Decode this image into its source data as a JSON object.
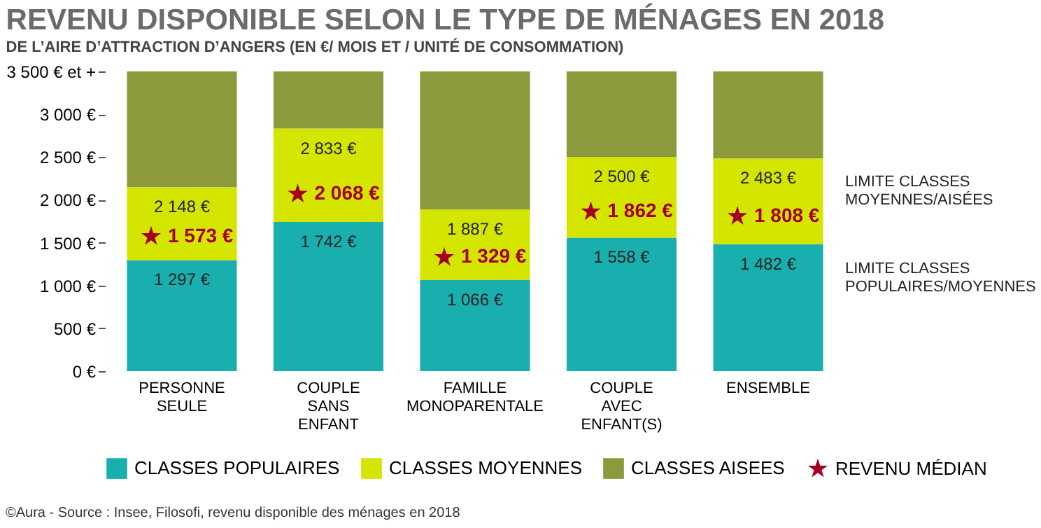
{
  "chart_data": {
    "type": "bar",
    "title": "REVENU DISPONIBLE SELON LE TYPE DE MÉNAGES EN 2018",
    "subtitle": "DE L’AIRE D’ATTRACTION D’ANGERS (EN €/ MOIS ET / UNITÉ DE CONSOMMATION)",
    "categories": [
      "PERSONNE SEULE",
      "COUPLE SANS ENFANT",
      "FAMILLE MONOPARENTALE",
      "COUPLE AVEC ENFANT(S)",
      "ENSEMBLE"
    ],
    "stacked": true,
    "grid": false,
    "legend": "bottom",
    "ylim": [
      0,
      3500
    ],
    "yticks": [
      {
        "value": 0,
        "label": "0 €"
      },
      {
        "value": 500,
        "label": "500 €"
      },
      {
        "value": 1000,
        "label": "1 000 €"
      },
      {
        "value": 1500,
        "label": "1 500 €"
      },
      {
        "value": 2000,
        "label": "2 000 €"
      },
      {
        "value": 2500,
        "label": "2 500 €"
      },
      {
        "value": 3000,
        "label": "3 000 €"
      },
      {
        "value": 3500,
        "label": "3 500 € et +"
      }
    ],
    "series": [
      {
        "name": "CLASSES POPULAIRES",
        "color": "#1aafaf",
        "values": [
          1297,
          1742,
          1066,
          1558,
          1482
        ],
        "value_labels": [
          "1 297 €",
          "1 742 €",
          "1 066 €",
          "1 558 €",
          "1 482 €"
        ]
      },
      {
        "name": "CLASSES MOYENNES",
        "color": "#d4e600",
        "values": [
          851,
          1091,
          821,
          942,
          1001
        ]
      },
      {
        "name": "CLASSES AISEES",
        "color": "#8c9a3c",
        "values": [
          1352,
          667,
          1613,
          1000,
          1017
        ]
      },
      {
        "name": "REVENU MÉDIAN",
        "type": "scatter",
        "marker": "star",
        "color": "#a50021",
        "x": [
          "PERSONNE SEULE",
          "COUPLE SANS ENFANT",
          "FAMILLE MONOPARENTALE",
          "COUPLE AVEC ENFANT(S)",
          "ENSEMBLE"
        ],
        "values": [
          1573,
          2068,
          1329,
          1862,
          1808
        ],
        "value_labels": [
          "1 573 €",
          "2 068 €",
          "1 329 €",
          "1 862 €",
          "1 808 €"
        ]
      }
    ],
    "annotations": [
      {
        "text": "2 148 €",
        "x": "PERSONNE SEULE",
        "y": 2148
      },
      {
        "text": "2 833 €",
        "x": "COUPLE SANS ENFANT",
        "y": 2833
      },
      {
        "text": "1 887 €",
        "x": "FAMILLE MONOPARENTALE",
        "y": 1887
      },
      {
        "text": "2 500 €",
        "x": "COUPLE AVEC ENFANT(S)",
        "y": 2500
      },
      {
        "text": "2 483 €",
        "x": "ENSEMBLE",
        "y": 2483
      },
      "LIMITE CLASSES MOYENNES/AISÉES",
      "LIMITE CLASSES POPULAIRES/MOYENNES",
      "©Aura - Source : Insee, Filosofi, revenu disponible des ménages en 2018"
    ]
  }
}
